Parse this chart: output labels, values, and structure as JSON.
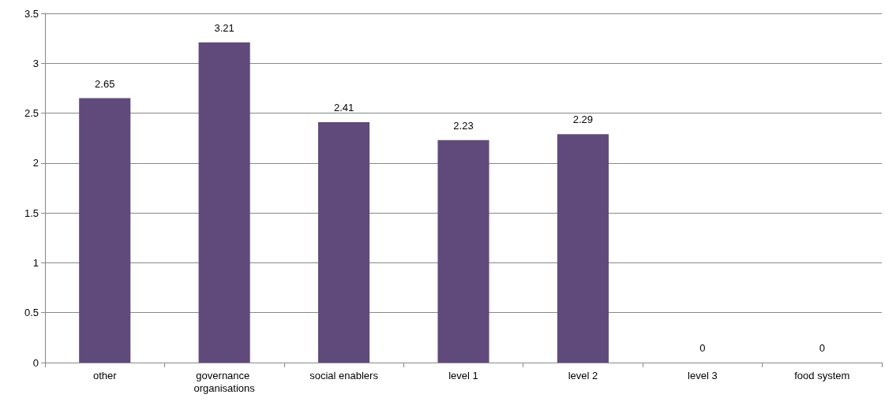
{
  "chart_data": {
    "type": "bar",
    "categories": [
      "other",
      "governance organisations",
      "social enablers",
      "level 1",
      "level 2",
      "level 3",
      "food system"
    ],
    "values": [
      2.65,
      3.21,
      2.41,
      2.23,
      2.29,
      0,
      0
    ],
    "color": "#604a7b",
    "ylim": [
      0,
      3.5
    ],
    "yticks": [
      0,
      0.5,
      1,
      1.5,
      2,
      2.5,
      3,
      3.5
    ],
    "grid": "y",
    "data_labels": true
  }
}
